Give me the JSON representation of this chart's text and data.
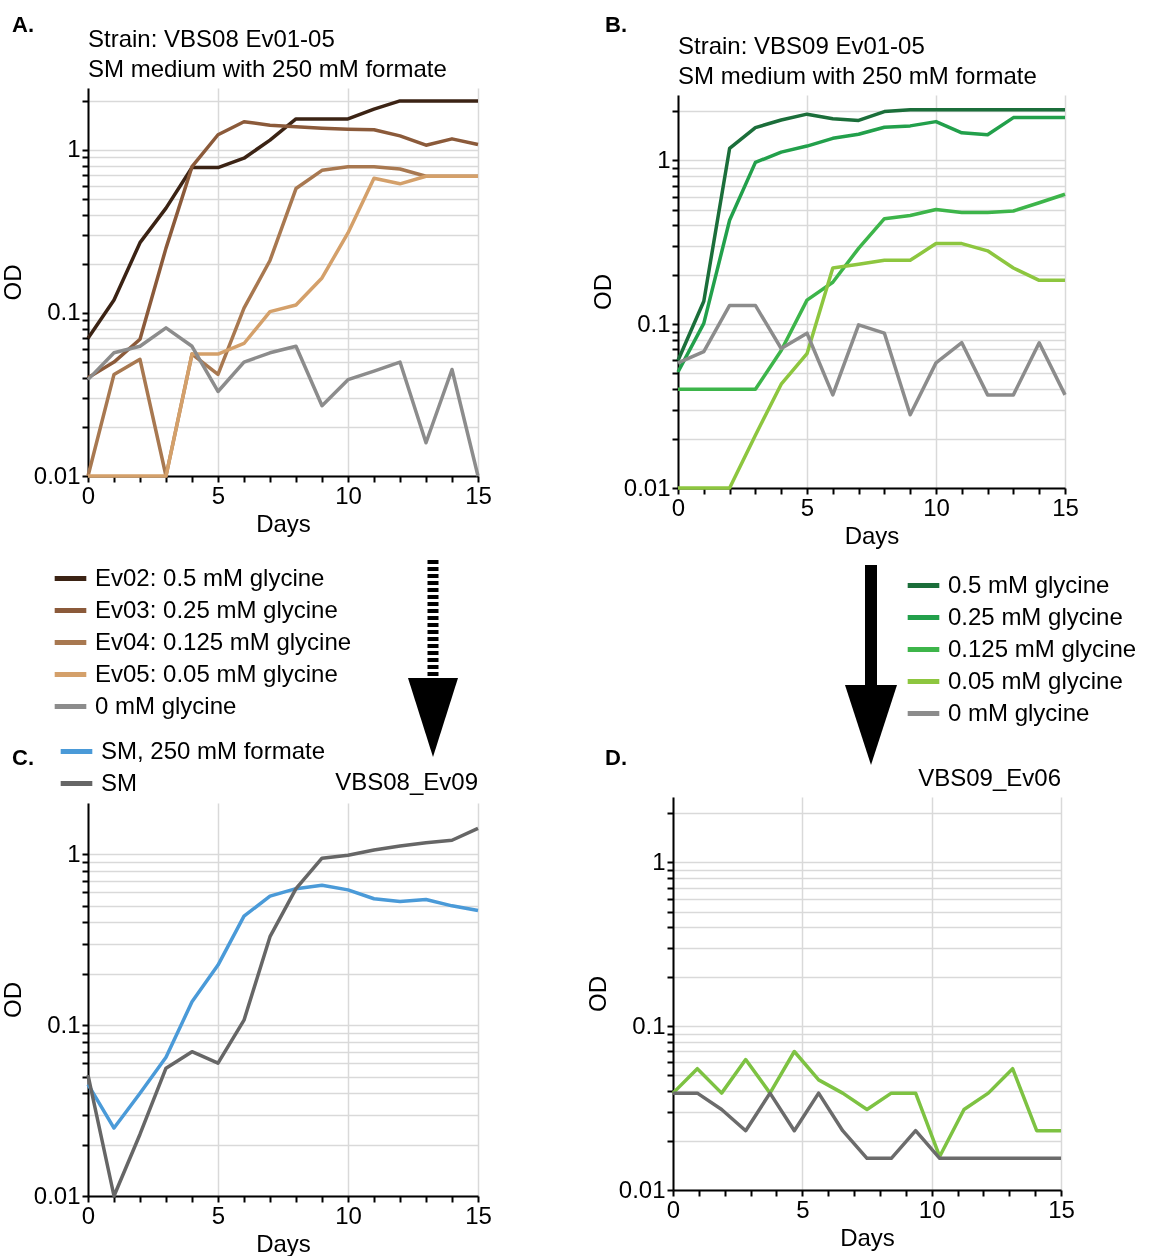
{
  "chart_data": [
    {
      "type": "line",
      "title": "Strain: VBS08 Ev01-05",
      "subtitle": "SM medium with 250 mM formate",
      "xlabel": "Days",
      "ylabel": "OD",
      "annotations": [
        "A."
      ],
      "log": true,
      "grid": true,
      "legend": "bottom left",
      "x": [
        0,
        1,
        2,
        3,
        4,
        5,
        6,
        7,
        8,
        9,
        10,
        11,
        12,
        13,
        14,
        15
      ],
      "xlim": [
        0,
        15
      ],
      "xticks": [
        0,
        {
          "value": 1,
          "label": null
        },
        {
          "value": 2,
          "label": null
        },
        {
          "value": 3,
          "label": null
        },
        {
          "value": 4,
          "label": null
        },
        5,
        {
          "value": 6,
          "label": null
        },
        {
          "value": 7,
          "label": null
        },
        {
          "value": 8,
          "label": null
        },
        {
          "value": 9,
          "label": null
        },
        10,
        {
          "value": 11,
          "label": null
        },
        {
          "value": 12,
          "label": null
        },
        {
          "value": 13,
          "label": null
        },
        {
          "value": 14,
          "label": null
        },
        15
      ],
      "ylim": [
        0.01,
        2.4
      ],
      "yticks": [
        0.01,
        {
          "value": 0.02,
          "label": null
        },
        {
          "value": 0.03,
          "label": null
        },
        {
          "value": 0.04,
          "label": null
        },
        {
          "value": 0.05,
          "label": null
        },
        {
          "value": 0.06,
          "label": null
        },
        {
          "value": 0.07,
          "label": null
        },
        {
          "value": 0.08,
          "label": null
        },
        {
          "value": 0.09,
          "label": null
        },
        0.1,
        {
          "value": 0.2,
          "label": null
        },
        {
          "value": 0.3,
          "label": null
        },
        {
          "value": 0.4,
          "label": null
        },
        {
          "value": 0.5,
          "label": null
        },
        {
          "value": 0.6,
          "label": null
        },
        {
          "value": 0.7,
          "label": null
        },
        {
          "value": 0.8,
          "label": null
        },
        {
          "value": 0.9,
          "label": null
        },
        1,
        {
          "value": 2,
          "label": null
        }
      ],
      "series": [
        {
          "name": "Ev02: 0.5 mM glycine",
          "color": "#3b2314",
          "values": [
            0.07,
            0.12,
            0.27,
            0.44,
            0.78,
            0.78,
            0.89,
            1.15,
            1.55,
            1.55,
            1.55,
            1.78,
            2.0,
            2.0,
            2.0,
            2.0
          ]
        },
        {
          "name": "Ev03: 0.25 mM glycine",
          "color": "#8b5a3a",
          "values": [
            0.04,
            0.05,
            0.069,
            0.25,
            0.79,
            1.24,
            1.49,
            1.42,
            1.39,
            1.36,
            1.34,
            1.33,
            1.22,
            1.07,
            1.17,
            1.08
          ]
        },
        {
          "name": "Ev04: 0.125 mM glycine",
          "color": "#a87850",
          "values": [
            0.01,
            0.042,
            0.052,
            0.01,
            0.056,
            0.042,
            0.107,
            0.21,
            0.58,
            0.75,
            0.79,
            0.79,
            0.765,
            0.69,
            0.69,
            0.69
          ]
        },
        {
          "name": "Ev05: 0.05 mM glycine",
          "color": "#d4a06a",
          "values": [
            0.01,
            0.01,
            0.01,
            0.01,
            0.056,
            0.056,
            0.065,
            0.102,
            0.112,
            0.164,
            0.31,
            0.67,
            0.62,
            0.69,
            0.69,
            0.69
          ]
        },
        {
          "name": "0 mM glycine",
          "color": "#8c8c8c",
          "values": [
            0.039,
            0.057,
            0.0625,
            0.081,
            0.0625,
            0.033,
            0.05,
            0.057,
            0.0625,
            0.027,
            0.039,
            0.044,
            0.05,
            0.016,
            0.045,
            0.01
          ]
        }
      ]
    },
    {
      "type": "line",
      "title": "Strain: VBS09 Ev01-05",
      "subtitle": "SM medium with 250 mM formate",
      "xlabel": "Days",
      "ylabel": "OD",
      "annotations": [
        "B."
      ],
      "log": true,
      "grid": true,
      "legend": "bottom right",
      "x": [
        0,
        1,
        2,
        3,
        4,
        5,
        6,
        7,
        8,
        9,
        10,
        11,
        12,
        13,
        14,
        15
      ],
      "xlim": [
        0,
        15
      ],
      "xticks": [
        0,
        {
          "value": 1,
          "label": null
        },
        {
          "value": 2,
          "label": null
        },
        {
          "value": 3,
          "label": null
        },
        {
          "value": 4,
          "label": null
        },
        5,
        {
          "value": 6,
          "label": null
        },
        {
          "value": 7,
          "label": null
        },
        {
          "value": 8,
          "label": null
        },
        {
          "value": 9,
          "label": null
        },
        10,
        {
          "value": 11,
          "label": null
        },
        {
          "value": 12,
          "label": null
        },
        {
          "value": 13,
          "label": null
        },
        {
          "value": 14,
          "label": null
        },
        15
      ],
      "ylim": [
        0.01,
        2.5
      ],
      "yticks": [
        0.01,
        {
          "value": 0.02,
          "label": null
        },
        {
          "value": 0.03,
          "label": null
        },
        {
          "value": 0.04,
          "label": null
        },
        {
          "value": 0.05,
          "label": null
        },
        {
          "value": 0.06,
          "label": null
        },
        {
          "value": 0.07,
          "label": null
        },
        {
          "value": 0.08,
          "label": null
        },
        {
          "value": 0.09,
          "label": null
        },
        0.1,
        {
          "value": 0.2,
          "label": null
        },
        {
          "value": 0.3,
          "label": null
        },
        {
          "value": 0.4,
          "label": null
        },
        {
          "value": 0.5,
          "label": null
        },
        {
          "value": 0.6,
          "label": null
        },
        {
          "value": 0.7,
          "label": null
        },
        {
          "value": 0.8,
          "label": null
        },
        {
          "value": 0.9,
          "label": null
        },
        1,
        {
          "value": 2,
          "label": null
        }
      ],
      "series": [
        {
          "name": "0.5 mM glycine",
          "color": "#1b6e3a",
          "values": [
            0.06,
            0.138,
            1.18,
            1.58,
            1.76,
            1.91,
            1.79,
            1.75,
            1.98,
            2.03,
            2.03,
            2.03,
            2.03,
            2.03,
            2.03,
            2.03
          ]
        },
        {
          "name": "0.25 mM glycine",
          "color": "#22a04b",
          "values": [
            0.051,
            0.101,
            0.43,
            0.97,
            1.12,
            1.22,
            1.36,
            1.44,
            1.59,
            1.62,
            1.72,
            1.47,
            1.43,
            1.82,
            1.82,
            1.82
          ]
        },
        {
          "name": "0.125 mM glycine",
          "color": "#3db54a",
          "values": [
            0.04,
            0.04,
            0.04,
            0.04,
            0.069,
            0.14,
            0.18,
            0.29,
            0.44,
            0.46,
            0.5,
            0.48,
            0.48,
            0.49,
            0.55,
            0.62
          ]
        },
        {
          "name": "0.05 mM glycine",
          "color": "#8dc63f",
          "values": [
            0.01,
            0.01,
            0.01,
            0.021,
            0.043,
            0.066,
            0.22,
            0.232,
            0.245,
            0.245,
            0.31,
            0.31,
            0.28,
            0.22,
            0.185,
            0.185
          ]
        },
        {
          "name": "0 mM glycine",
          "color": "#8c8c8c",
          "values": [
            0.058,
            0.068,
            0.13,
            0.13,
            0.071,
            0.088,
            0.037,
            0.099,
            0.088,
            0.028,
            0.058,
            0.077,
            0.037,
            0.037,
            0.077,
            0.037
          ]
        }
      ]
    },
    {
      "type": "line",
      "title": "VBS08_Ev09",
      "xlabel": "Days",
      "ylabel": "OD",
      "annotations": [
        "C."
      ],
      "log": true,
      "grid": true,
      "legend": "top left",
      "x": [
        0,
        1,
        2,
        3,
        4,
        5,
        6,
        7,
        8,
        9,
        10,
        11,
        12,
        13,
        14,
        15
      ],
      "xlim": [
        0,
        15
      ],
      "xticks": [
        0,
        {
          "value": 1,
          "label": null
        },
        {
          "value": 2,
          "label": null
        },
        {
          "value": 3,
          "label": null
        },
        {
          "value": 4,
          "label": null
        },
        5,
        {
          "value": 6,
          "label": null
        },
        {
          "value": 7,
          "label": null
        },
        {
          "value": 8,
          "label": null
        },
        {
          "value": 9,
          "label": null
        },
        10,
        {
          "value": 11,
          "label": null
        },
        {
          "value": 12,
          "label": null
        },
        {
          "value": 13,
          "label": null
        },
        {
          "value": 14,
          "label": null
        },
        15
      ],
      "ylim": [
        0.01,
        2.0
      ],
      "yticks": [
        0.01,
        {
          "value": 0.02,
          "label": null
        },
        {
          "value": 0.03,
          "label": null
        },
        {
          "value": 0.04,
          "label": null
        },
        {
          "value": 0.05,
          "label": null
        },
        {
          "value": 0.06,
          "label": null
        },
        {
          "value": 0.07,
          "label": null
        },
        {
          "value": 0.08,
          "label": null
        },
        {
          "value": 0.09,
          "label": null
        },
        0.1,
        {
          "value": 0.2,
          "label": null
        },
        {
          "value": 0.3,
          "label": null
        },
        {
          "value": 0.4,
          "label": null
        },
        {
          "value": 0.5,
          "label": null
        },
        {
          "value": 0.6,
          "label": null
        },
        {
          "value": 0.7,
          "label": null
        },
        {
          "value": 0.8,
          "label": null
        },
        {
          "value": 0.9,
          "label": null
        },
        1
      ],
      "series": [
        {
          "name": "SM, 250 mM formate",
          "color": "#4a9ad8",
          "values": [
            0.045,
            0.025,
            0.04,
            0.065,
            0.137,
            0.225,
            0.435,
            0.57,
            0.63,
            0.66,
            0.62,
            0.55,
            0.53,
            0.545,
            0.5,
            0.47
          ]
        },
        {
          "name": "SM",
          "color": "#666666",
          "values": [
            0.051,
            0.01,
            0.023,
            0.056,
            0.07,
            0.06,
            0.107,
            0.33,
            0.63,
            0.95,
            0.99,
            1.06,
            1.12,
            1.17,
            1.21,
            1.42
          ]
        }
      ]
    },
    {
      "type": "line",
      "title": "VBS09_Ev06",
      "xlabel": "Days",
      "ylabel": "OD",
      "annotations": [
        "D."
      ],
      "log": true,
      "grid": true,
      "x": [
        0,
        0.94,
        1.88,
        2.81,
        3.75,
        4.69,
        5.63,
        6.56,
        7.5,
        8.44,
        9.38,
        10.31,
        11.25,
        12.19,
        13.13,
        14.06,
        15
      ],
      "xlim": [
        0,
        15
      ],
      "xticks": [
        0,
        {
          "value": 1,
          "label": null
        },
        {
          "value": 2,
          "label": null
        },
        {
          "value": 3,
          "label": null
        },
        {
          "value": 4,
          "label": null
        },
        5,
        {
          "value": 6,
          "label": null
        },
        {
          "value": 7,
          "label": null
        },
        {
          "value": 8,
          "label": null
        },
        {
          "value": 9,
          "label": null
        },
        10,
        {
          "value": 11,
          "label": null
        },
        {
          "value": 12,
          "label": null
        },
        {
          "value": 13,
          "label": null
        },
        {
          "value": 14,
          "label": null
        },
        15
      ],
      "ylim": [
        0.01,
        2.5
      ],
      "yticks": [
        0.01,
        {
          "value": 0.02,
          "label": null
        },
        {
          "value": 0.03,
          "label": null
        },
        {
          "value": 0.04,
          "label": null
        },
        {
          "value": 0.05,
          "label": null
        },
        {
          "value": 0.06,
          "label": null
        },
        {
          "value": 0.07,
          "label": null
        },
        {
          "value": 0.08,
          "label": null
        },
        {
          "value": 0.09,
          "label": null
        },
        0.1,
        {
          "value": 0.2,
          "label": null
        },
        {
          "value": 0.3,
          "label": null
        },
        {
          "value": 0.4,
          "label": null
        },
        {
          "value": 0.5,
          "label": null
        },
        {
          "value": 0.6,
          "label": null
        },
        {
          "value": 0.7,
          "label": null
        },
        {
          "value": 0.8,
          "label": null
        },
        {
          "value": 0.9,
          "label": null
        },
        1,
        {
          "value": 2,
          "label": null
        }
      ],
      "series": [
        {
          "color": "#7dc242",
          "values": [
            0.039,
            0.055,
            0.039,
            0.0625,
            0.039,
            0.07,
            0.047,
            0.039,
            0.031,
            0.039,
            0.039,
            0.016,
            0.031,
            0.039,
            0.055,
            0.023,
            0.023
          ]
        },
        {
          "color": "#6b6b6b",
          "values": [
            0.039,
            0.039,
            0.031,
            0.023,
            0.039,
            0.023,
            0.039,
            0.023,
            0.0156,
            0.0156,
            0.023,
            0.0156,
            0.0156,
            0.0156,
            0.0156,
            0.0156,
            0.0156
          ]
        }
      ]
    }
  ]
}
